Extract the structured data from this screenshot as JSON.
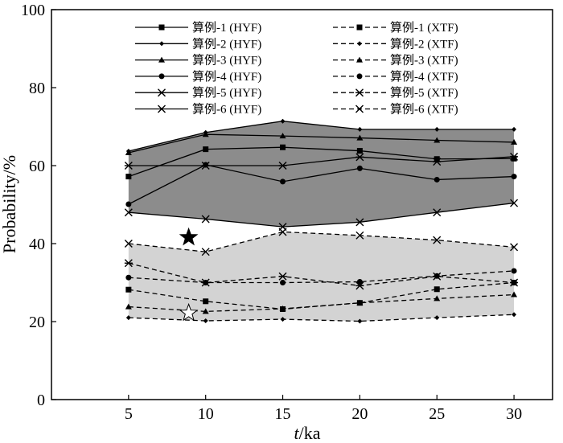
{
  "chart_data": {
    "type": "line",
    "x": [
      5,
      10,
      15,
      20,
      25,
      30
    ],
    "xlabel_italic": "t",
    "xlabel_unit": "/ka",
    "ylabel": "Probability/%",
    "xlim": [
      0,
      32.5
    ],
    "ylim": [
      0,
      100
    ],
    "xticks": [
      5,
      10,
      15,
      20,
      25,
      30
    ],
    "yticks": [
      0,
      20,
      40,
      60,
      80,
      100
    ],
    "grid": false,
    "legend_position": "top",
    "bands": [
      {
        "group": "HYF",
        "color": "#8c8c8c"
      },
      {
        "group": "XTF",
        "color": "#d3d3d3"
      }
    ],
    "series": [
      {
        "name": "算例-1 (HYF)",
        "style": "solid",
        "marker": "square",
        "values": [
          57.2,
          64.2,
          64.7,
          63.8,
          61.7,
          61.8
        ]
      },
      {
        "name": "算例-1 (XTF)",
        "style": "dashed",
        "marker": "square",
        "values": [
          28.2,
          25.2,
          23.2,
          24.8,
          28.3,
          30.0
        ]
      },
      {
        "name": "算例-2 (HYF)",
        "style": "solid",
        "marker": "diamond",
        "values": [
          63.7,
          68.5,
          71.4,
          69.3,
          69.3,
          69.3
        ]
      },
      {
        "name": "算例-2 (XTF)",
        "style": "dashed",
        "marker": "diamond",
        "values": [
          21.0,
          20.2,
          20.6,
          20.1,
          21.0,
          21.8
        ]
      },
      {
        "name": "算例-3 (HYF)",
        "style": "solid",
        "marker": "triangle",
        "values": [
          63.3,
          68.0,
          67.6,
          67.1,
          66.5,
          66.0
        ]
      },
      {
        "name": "算例-3 (XTF)",
        "style": "dashed",
        "marker": "triangle",
        "values": [
          23.8,
          22.6,
          23.3,
          24.8,
          25.9,
          26.9
        ]
      },
      {
        "name": "算例-4 (HYF)",
        "style": "solid",
        "marker": "circle",
        "values": [
          50.1,
          60.2,
          55.9,
          59.3,
          56.4,
          57.2
        ]
      },
      {
        "name": "算例-4 (XTF)",
        "style": "dashed",
        "marker": "circle",
        "values": [
          31.3,
          30.0,
          30.0,
          30.2,
          31.7,
          33.0
        ]
      },
      {
        "name": "算例-5 (HYF)",
        "style": "solid",
        "marker": "asterisk",
        "values": [
          60.0,
          60.0,
          60.0,
          62.2,
          61.0,
          62.3
        ]
      },
      {
        "name": "算例-5 (XTF)",
        "style": "dashed",
        "marker": "asterisk",
        "values": [
          35.0,
          30.0,
          31.6,
          29.2,
          31.6,
          30.0
        ]
      },
      {
        "name": "算例-6 (HYF)",
        "style": "solid",
        "marker": "x",
        "values": [
          48.0,
          46.3,
          44.3,
          45.5,
          48.0,
          50.4
        ]
      },
      {
        "name": "算例-6 (XTF)",
        "style": "dashed",
        "marker": "x",
        "values": [
          40.0,
          37.9,
          43.0,
          42.1,
          40.9,
          39.1
        ]
      }
    ],
    "annotations": [
      {
        "shape": "star",
        "fill": "#000000",
        "x": 8.9,
        "y": 41.6
      },
      {
        "shape": "star",
        "fill": "#ffffff",
        "x": 8.9,
        "y": 22.2
      }
    ]
  }
}
